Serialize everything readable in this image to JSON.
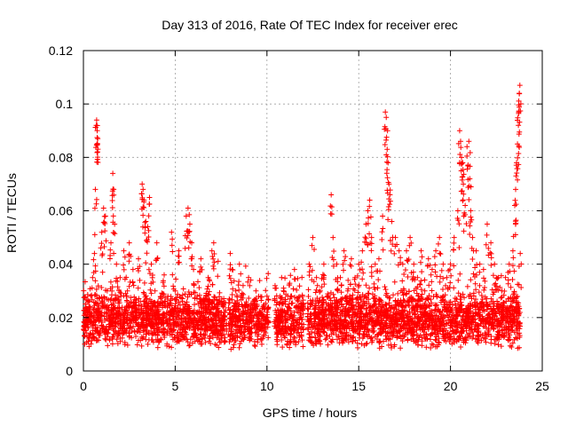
{
  "chart_data": {
    "type": "scatter",
    "title": "Day 313 of 2016, Rate Of TEC Index for receiver erec",
    "xlabel": "GPS time / hours",
    "ylabel": "ROTI / TECUs",
    "xlim": [
      0,
      25
    ],
    "ylim": [
      0,
      0.12
    ],
    "x_ticks": [
      0,
      5,
      10,
      15,
      20,
      25
    ],
    "x_tick_labels": [
      "0",
      "5",
      "10",
      "15",
      "20",
      "25"
    ],
    "y_ticks": [
      0,
      0.02,
      0.04,
      0.06,
      0.08,
      0.1,
      0.12
    ],
    "y_tick_labels": [
      "0",
      "0.02",
      "0.04",
      "0.06",
      "0.08",
      "0.1",
      "0.12"
    ],
    "grid": true,
    "marker": "+",
    "color": "#ff0000",
    "series": [
      {
        "name": "ROTI",
        "points": [
          [
            0.1,
            0.018
          ],
          [
            0.2,
            0.022
          ],
          [
            0.3,
            0.012
          ],
          [
            0.4,
            0.028
          ],
          [
            0.5,
            0.035
          ],
          [
            0.6,
            0.044
          ],
          [
            0.65,
            0.068
          ],
          [
            0.7,
            0.092
          ],
          [
            0.72,
            0.094
          ],
          [
            0.75,
            0.09
          ],
          [
            0.78,
            0.087
          ],
          [
            0.8,
            0.025
          ],
          [
            0.9,
            0.015
          ],
          [
            1.0,
            0.052
          ],
          [
            1.1,
            0.061
          ],
          [
            1.2,
            0.058
          ],
          [
            1.3,
            0.03
          ],
          [
            1.4,
            0.02
          ],
          [
            1.5,
            0.048
          ],
          [
            1.6,
            0.074
          ],
          [
            1.65,
            0.068
          ],
          [
            1.7,
            0.055
          ],
          [
            1.8,
            0.04
          ],
          [
            1.9,
            0.022
          ],
          [
            2.0,
            0.035
          ],
          [
            2.2,
            0.045
          ],
          [
            2.4,
            0.03
          ],
          [
            2.5,
            0.048
          ],
          [
            2.7,
            0.038
          ],
          [
            2.9,
            0.02
          ],
          [
            3.0,
            0.042
          ],
          [
            3.2,
            0.07
          ],
          [
            3.25,
            0.068
          ],
          [
            3.3,
            0.064
          ],
          [
            3.4,
            0.056
          ],
          [
            3.5,
            0.054
          ],
          [
            3.6,
            0.065
          ],
          [
            3.7,
            0.04
          ],
          [
            3.9,
            0.03
          ],
          [
            4.0,
            0.048
          ],
          [
            4.2,
            0.025
          ],
          [
            4.4,
            0.036
          ],
          [
            4.6,
            0.028
          ],
          [
            4.8,
            0.052
          ],
          [
            5.0,
            0.03
          ],
          [
            5.2,
            0.045
          ],
          [
            5.4,
            0.022
          ],
          [
            5.6,
            0.058
          ],
          [
            5.7,
            0.061
          ],
          [
            5.8,
            0.055
          ],
          [
            5.9,
            0.048
          ],
          [
            6.0,
            0.038
          ],
          [
            6.2,
            0.028
          ],
          [
            6.4,
            0.042
          ],
          [
            6.6,
            0.02
          ],
          [
            6.8,
            0.035
          ],
          [
            7.0,
            0.045
          ],
          [
            7.1,
            0.048
          ],
          [
            7.3,
            0.025
          ],
          [
            7.5,
            0.015
          ],
          [
            8.0,
            0.044
          ],
          [
            8.1,
            0.038
          ],
          [
            8.3,
            0.03
          ],
          [
            8.5,
            0.04
          ],
          [
            8.7,
            0.032
          ],
          [
            8.9,
            0.025
          ],
          [
            9.0,
            0.035
          ],
          [
            9.2,
            0.022
          ],
          [
            9.4,
            0.03
          ],
          [
            9.6,
            0.018
          ],
          [
            9.8,
            0.024
          ],
          [
            10.0,
            0.028
          ],
          [
            10.5,
            0.031
          ],
          [
            10.7,
            0.025
          ],
          [
            10.9,
            0.03
          ],
          [
            11.1,
            0.022
          ],
          [
            11.3,
            0.028
          ],
          [
            11.5,
            0.038
          ],
          [
            11.7,
            0.026
          ],
          [
            11.9,
            0.024
          ],
          [
            12.3,
            0.04
          ],
          [
            12.5,
            0.05
          ],
          [
            12.7,
            0.035
          ],
          [
            12.9,
            0.03
          ],
          [
            13.1,
            0.04
          ],
          [
            13.3,
            0.028
          ],
          [
            13.5,
            0.066
          ],
          [
            13.6,
            0.05
          ],
          [
            13.8,
            0.04
          ],
          [
            14.0,
            0.035
          ],
          [
            14.2,
            0.045
          ],
          [
            14.4,
            0.03
          ],
          [
            14.6,
            0.042
          ],
          [
            14.8,
            0.035
          ],
          [
            15.0,
            0.04
          ],
          [
            15.2,
            0.045
          ],
          [
            15.4,
            0.055
          ],
          [
            15.5,
            0.06
          ],
          [
            15.6,
            0.064
          ],
          [
            15.7,
            0.05
          ],
          [
            15.9,
            0.04
          ],
          [
            16.1,
            0.042
          ],
          [
            16.3,
            0.058
          ],
          [
            16.45,
            0.097
          ],
          [
            16.5,
            0.095
          ],
          [
            16.55,
            0.083
          ],
          [
            16.6,
            0.078
          ],
          [
            16.65,
            0.07
          ],
          [
            16.7,
            0.066
          ],
          [
            16.8,
            0.056
          ],
          [
            17.0,
            0.05
          ],
          [
            17.2,
            0.045
          ],
          [
            17.4,
            0.04
          ],
          [
            17.6,
            0.045
          ],
          [
            17.8,
            0.05
          ],
          [
            18.0,
            0.04
          ],
          [
            18.2,
            0.035
          ],
          [
            18.4,
            0.045
          ],
          [
            18.6,
            0.03
          ],
          [
            18.8,
            0.042
          ],
          [
            19.0,
            0.038
          ],
          [
            19.2,
            0.045
          ],
          [
            19.4,
            0.05
          ],
          [
            19.6,
            0.04
          ],
          [
            19.8,
            0.035
          ],
          [
            20.0,
            0.04
          ],
          [
            20.2,
            0.05
          ],
          [
            20.4,
            0.06
          ],
          [
            20.5,
            0.09
          ],
          [
            20.55,
            0.086
          ],
          [
            20.6,
            0.08
          ],
          [
            20.65,
            0.078
          ],
          [
            20.7,
            0.07
          ],
          [
            20.8,
            0.062
          ],
          [
            20.9,
            0.084
          ],
          [
            21.0,
            0.086
          ],
          [
            21.05,
            0.072
          ],
          [
            21.1,
            0.06
          ],
          [
            21.2,
            0.05
          ],
          [
            21.4,
            0.045
          ],
          [
            21.6,
            0.04
          ],
          [
            21.8,
            0.038
          ],
          [
            22.0,
            0.055
          ],
          [
            22.2,
            0.048
          ],
          [
            22.4,
            0.04
          ],
          [
            22.6,
            0.035
          ],
          [
            22.8,
            0.03
          ],
          [
            23.0,
            0.035
          ],
          [
            23.2,
            0.04
          ],
          [
            23.4,
            0.045
          ],
          [
            23.5,
            0.062
          ],
          [
            23.55,
            0.068
          ],
          [
            23.6,
            0.078
          ],
          [
            23.65,
            0.085
          ],
          [
            23.7,
            0.092
          ],
          [
            23.72,
            0.097
          ],
          [
            23.75,
            0.104
          ],
          [
            23.78,
            0.107
          ],
          [
            23.8,
            0.044
          ]
        ],
        "band": {
          "description": "dense red cloud of data points",
          "segments": [
            [
              0.0,
              7.8
            ],
            [
              7.9,
              10.1
            ],
            [
              10.4,
              12.0
            ],
            [
              12.2,
              23.8
            ]
          ],
          "typical_low": 0.008,
          "typical_high": 0.03
        }
      }
    ]
  }
}
